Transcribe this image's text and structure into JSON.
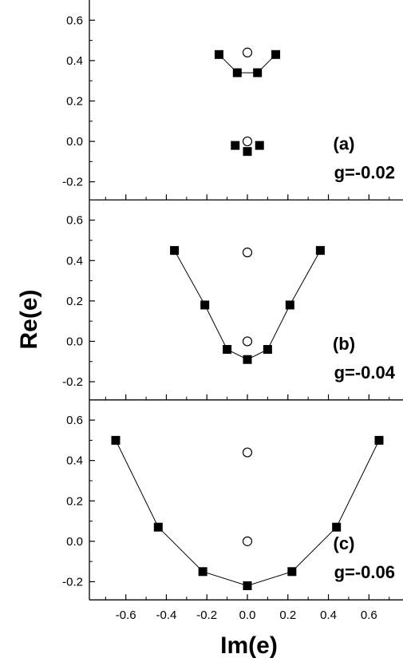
{
  "chart_data": {
    "type": "scatter",
    "xlabel": "Im(e)",
    "ylabel": "Re(e)",
    "xlim": [
      -0.78,
      0.78
    ],
    "x_ticks": [
      -0.6,
      -0.4,
      -0.2,
      0.0,
      0.2,
      0.4,
      0.6
    ],
    "x_tick_labels": [
      "-0.6",
      "-0.4",
      "-0.2",
      "0.0",
      "0.2",
      "0.4",
      "0.6"
    ],
    "y_ticks": [
      -0.2,
      0.0,
      0.2,
      0.4,
      0.6
    ],
    "y_tick_labels": [
      "-0.2",
      "0.0",
      "0.2",
      "0.4",
      "0.6"
    ],
    "grid": false,
    "legend": "none",
    "marker_colors": {
      "filled": "#000000",
      "open": "#000000"
    },
    "panels": [
      {
        "label": "(a)",
        "g_label": "g=-0.02",
        "ylim": [
          -0.29,
          0.7
        ],
        "series": [
          {
            "marker": "filled-square",
            "connected": true,
            "points": [
              [
                -0.14,
                0.43
              ],
              [
                -0.05,
                0.34
              ],
              [
                0.05,
                0.34
              ],
              [
                0.14,
                0.43
              ]
            ]
          },
          {
            "marker": "filled-square",
            "connected": false,
            "points": [
              [
                -0.06,
                -0.02
              ],
              [
                0.0,
                -0.05
              ],
              [
                0.06,
                -0.02
              ]
            ]
          },
          {
            "marker": "open-circle",
            "connected": false,
            "points": [
              [
                0.0,
                0.44
              ],
              [
                0.0,
                0.0
              ]
            ]
          }
        ]
      },
      {
        "label": "(b)",
        "g_label": "g=-0.04",
        "ylim": [
          -0.29,
          0.7
        ],
        "series": [
          {
            "marker": "filled-square",
            "connected": true,
            "points": [
              [
                -0.36,
                0.45
              ],
              [
                -0.21,
                0.18
              ],
              [
                -0.1,
                -0.04
              ],
              [
                0.0,
                -0.09
              ],
              [
                0.1,
                -0.04
              ],
              [
                0.21,
                0.18
              ],
              [
                0.36,
                0.45
              ]
            ]
          },
          {
            "marker": "open-circle",
            "connected": false,
            "points": [
              [
                0.0,
                0.44
              ],
              [
                0.0,
                0.0
              ]
            ]
          }
        ]
      },
      {
        "label": "(c)",
        "g_label": "g=-0.06",
        "ylim": [
          -0.29,
          0.7
        ],
        "series": [
          {
            "marker": "filled-square",
            "connected": true,
            "points": [
              [
                -0.65,
                0.5
              ],
              [
                -0.44,
                0.07
              ],
              [
                -0.22,
                -0.15
              ],
              [
                0.0,
                -0.22
              ],
              [
                0.22,
                -0.15
              ],
              [
                0.44,
                0.07
              ],
              [
                0.65,
                0.5
              ]
            ]
          },
          {
            "marker": "open-circle",
            "connected": false,
            "points": [
              [
                0.0,
                0.44
              ],
              [
                0.0,
                0.0
              ]
            ]
          }
        ]
      }
    ]
  }
}
